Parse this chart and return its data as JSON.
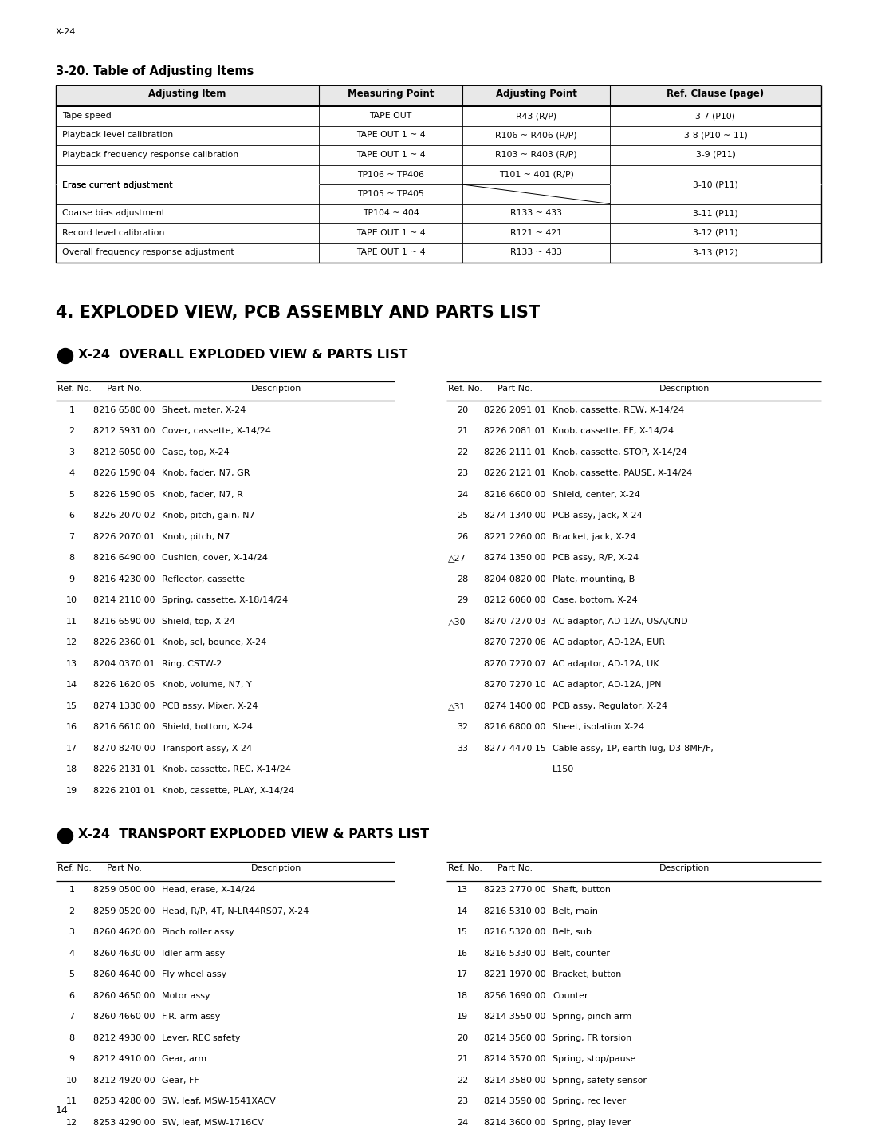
{
  "bg_color": "#ffffff",
  "page_label": "X-24",
  "page_number": "14",
  "section_320_title": "3-20. Table of Adjusting Items",
  "section_4_title": "4. EXPLODED VIEW, PCB ASSEMBLY AND PARTS LIST",
  "section_overall_title": "X-24  OVERALL EXPLODED VIEW & PARTS LIST",
  "section_transport_title": "X-24  TRANSPORT EXPLODED VIEW & PARTS LIST",
  "adj_table_headers": [
    "Adjusting Item",
    "Measuring Point",
    "Adjusting Point",
    "Ref. Clause (page)"
  ],
  "adj_table_rows": [
    [
      "Tape speed",
      "TAPE OUT",
      "R43 (R/P)",
      "3-7 (P10)"
    ],
    [
      "Playback level calibration",
      "TAPE OUT 1 ~ 4",
      "R106 ~ R406 (R/P)",
      "3-8 (P10 ~ 11)"
    ],
    [
      "Playback frequency response calibration",
      "TAPE OUT 1 ~ 4",
      "R103 ~ R403 (R/P)",
      "3-9 (P11)"
    ],
    [
      "Erase current adjustment",
      "TP106 ~ TP406",
      "T101 ~ 401 (R/P)",
      "3-10 (P11)"
    ],
    [
      "",
      "TP105 ~ TP405",
      "",
      ""
    ],
    [
      "Coarse bias adjustment",
      "TP104 ~ 404",
      "R133 ~ 433",
      "3-11 (P11)"
    ],
    [
      "Record level calibration",
      "TAPE OUT 1 ~ 4",
      "R121 ~ 421",
      "3-12 (P11)"
    ],
    [
      "Overall frequency response adjustment",
      "TAPE OUT 1 ~ 4",
      "R133 ~ 433",
      "3-13 (P12)"
    ]
  ],
  "overall_left": [
    [
      "1",
      "8216 6580 00",
      "Sheet, meter, X-24"
    ],
    [
      "2",
      "8212 5931 00",
      "Cover, cassette, X-14/24"
    ],
    [
      "3",
      "8212 6050 00",
      "Case, top, X-24"
    ],
    [
      "4",
      "8226 1590 04",
      "Knob, fader, N7, GR"
    ],
    [
      "5",
      "8226 1590 05",
      "Knob, fader, N7, R"
    ],
    [
      "6",
      "8226 2070 02",
      "Knob, pitch, gain, N7"
    ],
    [
      "7",
      "8226 2070 01",
      "Knob, pitch, N7"
    ],
    [
      "8",
      "8216 6490 00",
      "Cushion, cover, X-14/24"
    ],
    [
      "9",
      "8216 4230 00",
      "Reflector, cassette"
    ],
    [
      "10",
      "8214 2110 00",
      "Spring, cassette, X-18/14/24"
    ],
    [
      "11",
      "8216 6590 00",
      "Shield, top, X-24"
    ],
    [
      "12",
      "8226 2360 01",
      "Knob, sel, bounce, X-24"
    ],
    [
      "13",
      "8204 0370 01",
      "Ring, CSTW-2"
    ],
    [
      "14",
      "8226 1620 05",
      "Knob, volume, N7, Y"
    ],
    [
      "15",
      "8274 1330 00",
      "PCB assy, Mixer, X-24"
    ],
    [
      "16",
      "8216 6610 00",
      "Shield, bottom, X-24"
    ],
    [
      "17",
      "8270 8240 00",
      "Transport assy, X-24"
    ],
    [
      "18",
      "8226 2131 01",
      "Knob, cassette, REC, X-14/24"
    ],
    [
      "19",
      "8226 2101 01",
      "Knob, cassette, PLAY, X-14/24"
    ]
  ],
  "overall_right": [
    [
      "20",
      false,
      "8226 2091 01",
      "Knob, cassette, REW, X-14/24"
    ],
    [
      "21",
      false,
      "8226 2081 01",
      "Knob, cassette, FF, X-14/24"
    ],
    [
      "22",
      false,
      "8226 2111 01",
      "Knob, cassette, STOP, X-14/24"
    ],
    [
      "23",
      false,
      "8226 2121 01",
      "Knob, cassette, PAUSE, X-14/24"
    ],
    [
      "24",
      false,
      "8216 6600 00",
      "Shield, center, X-24"
    ],
    [
      "25",
      false,
      "8274 1340 00",
      "PCB assy, Jack, X-24"
    ],
    [
      "26",
      false,
      "8221 2260 00",
      "Bracket, jack, X-24"
    ],
    [
      "27",
      true,
      "8274 1350 00",
      "PCB assy, R/P, X-24"
    ],
    [
      "28",
      false,
      "8204 0820 00",
      "Plate, mounting, B"
    ],
    [
      "29",
      false,
      "8212 6060 00",
      "Case, bottom, X-24"
    ],
    [
      "30",
      true,
      "8270 7270 03",
      "AC adaptor, AD-12A, USA/CND"
    ],
    [
      "",
      false,
      "8270 7270 06",
      "AC adaptor, AD-12A, EUR"
    ],
    [
      "",
      false,
      "8270 7270 07",
      "AC adaptor, AD-12A, UK"
    ],
    [
      "",
      false,
      "8270 7270 10",
      "AC adaptor, AD-12A, JPN"
    ],
    [
      "31",
      true,
      "8274 1400 00",
      "PCB assy, Regulator, X-24"
    ],
    [
      "32",
      false,
      "8216 6800 00",
      "Sheet, isolation X-24"
    ],
    [
      "33",
      false,
      "8277 4470 15",
      "Cable assy, 1P, earth lug, D3-8MF/F,"
    ],
    [
      "",
      false,
      "",
      "L150"
    ]
  ],
  "transport_left": [
    [
      "1",
      "8259 0500 00",
      "Head, erase, X-14/24"
    ],
    [
      "2",
      "8259 0520 00",
      "Head, R/P, 4T, N-LR44RS07, X-24"
    ],
    [
      "3",
      "8260 4620 00",
      "Pinch roller assy"
    ],
    [
      "4",
      "8260 4630 00",
      "Idler arm assy"
    ],
    [
      "5",
      "8260 4640 00",
      "Fly wheel assy"
    ],
    [
      "6",
      "8260 4650 00",
      "Motor assy"
    ],
    [
      "7",
      "8260 4660 00",
      "F.R. arm assy"
    ],
    [
      "8",
      "8212 4930 00",
      "Lever, REC safety"
    ],
    [
      "9",
      "8212 4910 00",
      "Gear, arm"
    ],
    [
      "10",
      "8212 4920 00",
      "Gear, FF"
    ],
    [
      "11",
      "8253 4280 00",
      "SW, leaf, MSW-1541XACV"
    ],
    [
      "12",
      "8253 4290 00",
      "SW, leaf, MSW-1716CV"
    ]
  ],
  "transport_right": [
    [
      "13",
      "8223 2770 00",
      "Shaft, button"
    ],
    [
      "14",
      "8216 5310 00",
      "Belt, main"
    ],
    [
      "15",
      "8216 5320 00",
      "Belt, sub"
    ],
    [
      "16",
      "8216 5330 00",
      "Belt, counter"
    ],
    [
      "17",
      "8221 1970 00",
      "Bracket, button"
    ],
    [
      "18",
      "8256 1690 00",
      "Counter"
    ],
    [
      "19",
      "8214 3550 00",
      "Spring, pinch arm"
    ],
    [
      "20",
      "8214 3560 00",
      "Spring, FR torsion"
    ],
    [
      "21",
      "8214 3570 00",
      "Spring, stop/pause"
    ],
    [
      "22",
      "8214 3580 00",
      "Spring, safety sensor"
    ],
    [
      "23",
      "8214 3590 00",
      "Spring, rec lever"
    ],
    [
      "24",
      "8214 3600 00",
      "Spring, play lever"
    ]
  ]
}
